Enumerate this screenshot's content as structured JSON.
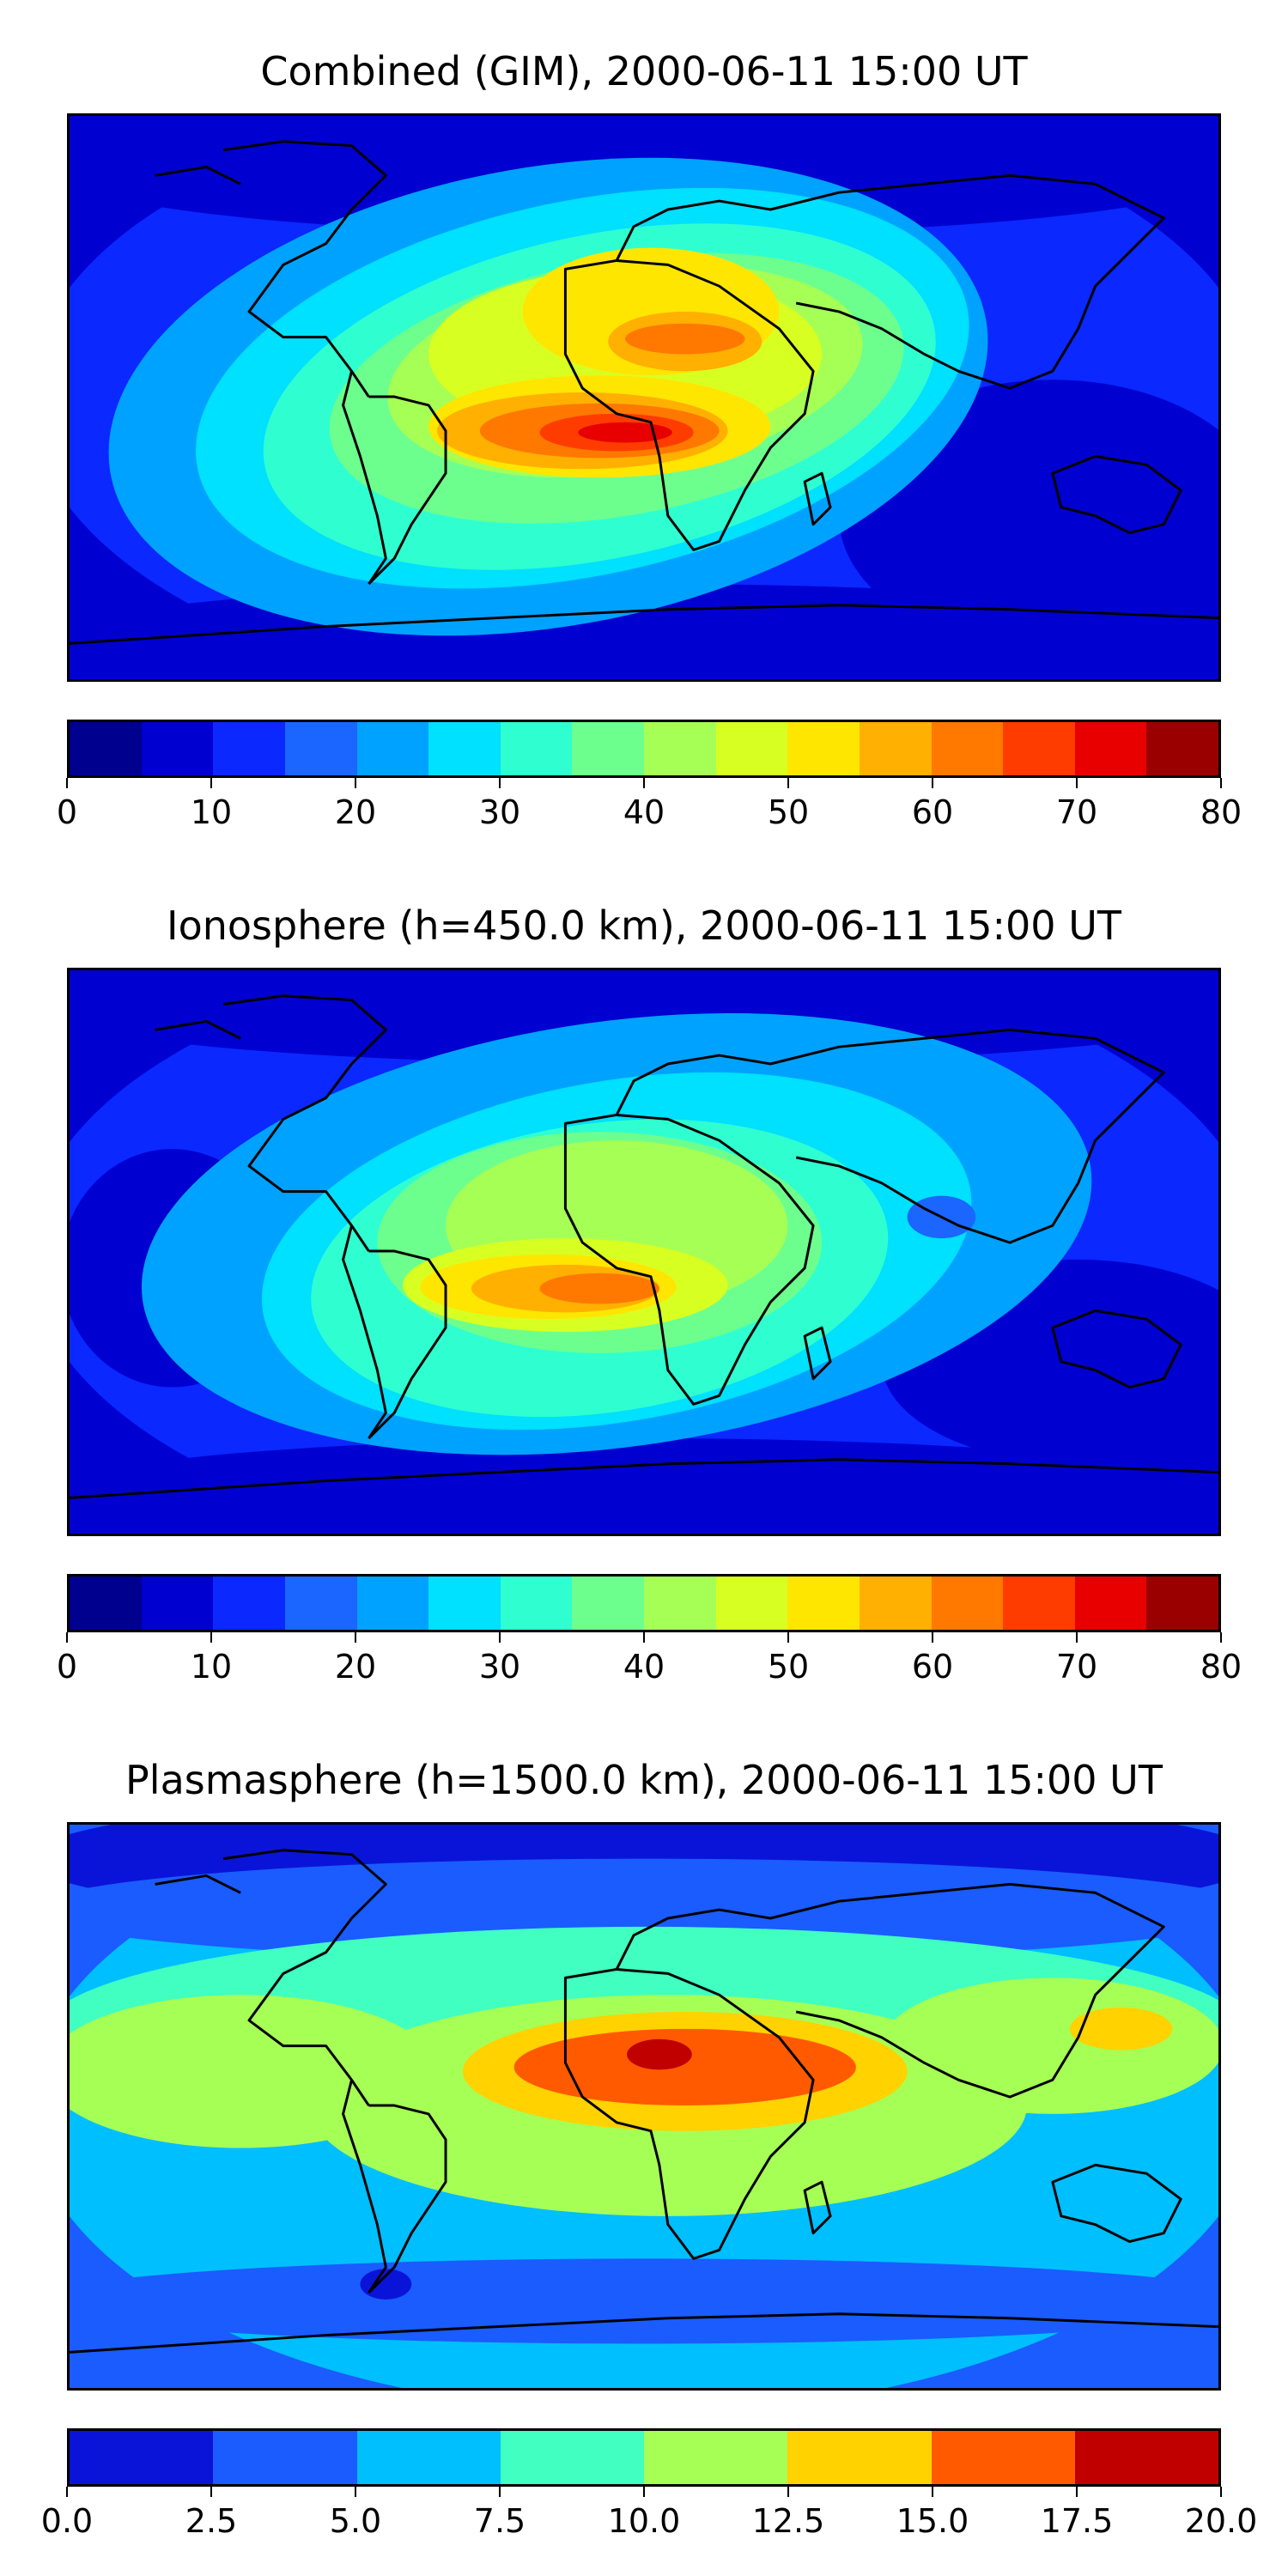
{
  "panels": [
    {
      "title": "Combined (GIM), 2000-06-11 15:00 UT",
      "field": "combined",
      "colorbar": {
        "colors": [
          "#00008f",
          "#0000d0",
          "#0a28ff",
          "#1a66ff",
          "#00a2ff",
          "#00e0ff",
          "#2fffd0",
          "#6dff8e",
          "#a6ff55",
          "#d8ff22",
          "#ffe600",
          "#ffb000",
          "#ff7800",
          "#ff3c00",
          "#e80000",
          "#9a0000"
        ],
        "ticks": [
          "0",
          "10",
          "20",
          "30",
          "40",
          "50",
          "60",
          "70",
          "80"
        ]
      }
    },
    {
      "title": "Ionosphere  (h=450.0 km), 2000-06-11 15:00 UT",
      "field": "ionosphere",
      "colorbar": {
        "colors": [
          "#00008f",
          "#0000d0",
          "#0a28ff",
          "#1a66ff",
          "#00a2ff",
          "#00e0ff",
          "#2fffd0",
          "#6dff8e",
          "#a6ff55",
          "#d8ff22",
          "#ffe600",
          "#ffb000",
          "#ff7800",
          "#ff3c00",
          "#e80000",
          "#9a0000"
        ],
        "ticks": [
          "0",
          "10",
          "20",
          "30",
          "40",
          "50",
          "60",
          "70",
          "80"
        ]
      }
    },
    {
      "title": "Plasmasphere (h=1500.0 km), 2000-06-11 15:00 UT",
      "field": "plasmasphere",
      "colorbar": {
        "colors": [
          "#0a14d8",
          "#1a5cff",
          "#00bfff",
          "#40ffc0",
          "#a6ff55",
          "#ffd200",
          "#ff5a00",
          "#c00000"
        ],
        "ticks": [
          "0.0",
          "2.5",
          "5.0",
          "7.5",
          "10.0",
          "12.5",
          "15.0",
          "17.5",
          "20.0"
        ]
      }
    }
  ]
}
